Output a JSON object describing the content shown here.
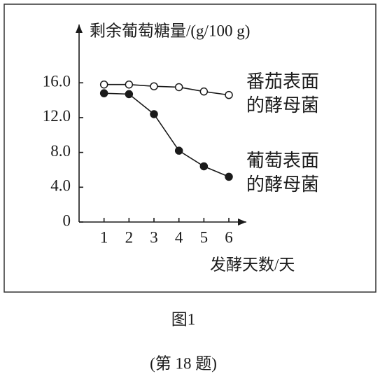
{
  "chart_data": {
    "type": "line",
    "y_label": "剩余葡萄糖量/(g/100 g)",
    "x_label": "发酵天数/天",
    "x": [
      1,
      2,
      3,
      4,
      5,
      6
    ],
    "xlim": [
      0,
      6.7
    ],
    "xticks": [
      1,
      2,
      3,
      4,
      5,
      6
    ],
    "ylim": [
      0,
      22.7
    ],
    "yticks": [
      0,
      {
        "value": 4,
        "label": "4.0"
      },
      {
        "value": 8,
        "label": "8.0"
      },
      {
        "value": 12,
        "label": "12.0"
      },
      {
        "value": 16,
        "label": "16.0"
      }
    ],
    "series": [
      {
        "name": "番茄表面的酵母菌",
        "color": "#1a1a1a",
        "marker_fill": "#ffffff",
        "values": [
          15.8,
          15.8,
          15.6,
          15.5,
          15.0,
          14.6
        ]
      },
      {
        "name": "葡萄表面的酵母菌",
        "color": "#1a1a1a",
        "marker_fill": "#1a1a1a",
        "values": [
          14.8,
          14.7,
          12.4,
          8.2,
          6.4,
          5.2
        ]
      }
    ],
    "caption": "图1",
    "question_label": "(第 18 题)"
  }
}
